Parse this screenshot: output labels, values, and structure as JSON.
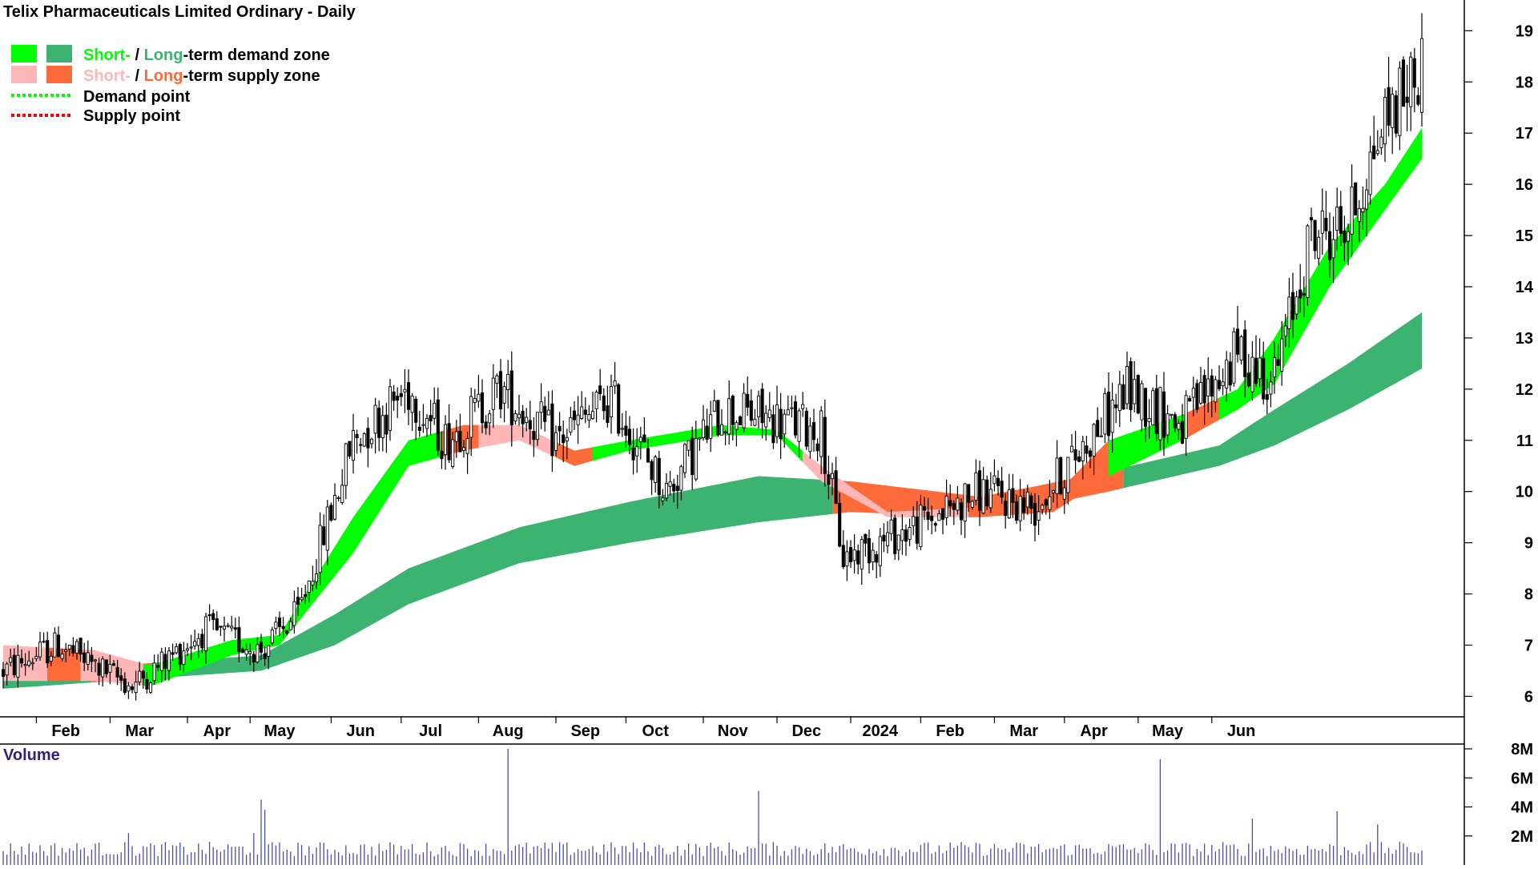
{
  "title": "Telix Pharmaceuticals Limited Ordinary - Daily",
  "legend": {
    "demand_zone": {
      "short": "Short-",
      "sep": " / ",
      "long": "Long",
      "rest": "-term demand zone"
    },
    "supply_zone": {
      "short": "Short-",
      "sep": " / ",
      "long": "Long",
      "rest": "-term supply zone"
    },
    "demand_point": "Demand point",
    "supply_point": "Supply point"
  },
  "colors": {
    "short_demand": "#00ff00",
    "long_demand": "#3cb371",
    "short_supply": "#ffb6b6",
    "long_supply": "#ff6a3a",
    "demand_point": "#00ff00",
    "supply_point": "#ff0000",
    "volume_bar": "#4b4bb4",
    "volume_title": "#3a1a7a"
  },
  "volume_label": "Volume",
  "chart_data": {
    "type": "candlestick",
    "ylim": [
      5.6,
      19.6
    ],
    "y_ticks": [
      "6",
      "7",
      "8",
      "9",
      "10",
      "11",
      "12",
      "13",
      "14",
      "15",
      "16",
      "17",
      "18",
      "19"
    ],
    "x_ticks": [
      "Feb",
      "Mar",
      "Apr",
      "May",
      "Jun",
      "Jul",
      "Aug",
      "Sep",
      "Oct",
      "Nov",
      "Dec",
      "2024",
      "Feb",
      "Mar",
      "Apr",
      "May",
      "Jun"
    ],
    "price_anchors": [
      [
        0,
        6.5
      ],
      [
        15,
        7.0
      ],
      [
        35,
        6.2
      ],
      [
        55,
        7.3
      ],
      [
        70,
        6.9
      ],
      [
        80,
        7.6
      ],
      [
        95,
        11.0
      ],
      [
        110,
        12.0
      ],
      [
        120,
        11.0
      ],
      [
        135,
        12.0
      ],
      [
        150,
        11.0
      ],
      [
        165,
        11.8
      ],
      [
        180,
        10.0
      ],
      [
        195,
        11.6
      ],
      [
        210,
        11.4
      ],
      [
        222,
        11.2
      ],
      [
        228,
        8.7
      ],
      [
        250,
        9.4
      ],
      [
        265,
        10.0
      ],
      [
        280,
        9.7
      ],
      [
        290,
        10.6
      ],
      [
        305,
        12.0
      ],
      [
        320,
        11.3
      ],
      [
        335,
        12.7
      ],
      [
        345,
        12.2
      ],
      [
        355,
        15.0
      ],
      [
        365,
        15.2
      ],
      [
        375,
        17.3
      ],
      [
        385,
        18.3
      ]
    ],
    "short_zone_upper": [
      [
        0,
        7.0
      ],
      [
        25,
        6.9
      ],
      [
        40,
        6.6
      ],
      [
        62,
        7.1
      ],
      [
        75,
        7.2
      ],
      [
        95,
        9.5
      ],
      [
        110,
        11.0
      ],
      [
        125,
        11.3
      ],
      [
        140,
        11.3
      ],
      [
        155,
        10.8
      ],
      [
        170,
        11.0
      ],
      [
        195,
        11.3
      ],
      [
        210,
        11.2
      ],
      [
        222,
        10.5
      ],
      [
        240,
        9.6
      ],
      [
        265,
        9.7
      ],
      [
        285,
        9.9
      ],
      [
        300,
        11.0
      ],
      [
        320,
        11.5
      ],
      [
        335,
        12.0
      ],
      [
        345,
        13.0
      ],
      [
        360,
        14.8
      ],
      [
        375,
        16.0
      ],
      [
        385,
        17.1
      ]
    ],
    "short_zone_lower": [
      [
        0,
        6.3
      ],
      [
        25,
        6.3
      ],
      [
        40,
        6.2
      ],
      [
        62,
        6.8
      ],
      [
        75,
        7.0
      ],
      [
        95,
        8.8
      ],
      [
        110,
        10.5
      ],
      [
        125,
        10.8
      ],
      [
        140,
        11.0
      ],
      [
        155,
        10.5
      ],
      [
        170,
        10.8
      ],
      [
        195,
        11.1
      ],
      [
        210,
        11.1
      ],
      [
        222,
        10.2
      ],
      [
        240,
        9.5
      ],
      [
        265,
        9.5
      ],
      [
        285,
        9.6
      ],
      [
        300,
        10.3
      ],
      [
        320,
        11.0
      ],
      [
        335,
        11.6
      ],
      [
        345,
        12.1
      ],
      [
        360,
        14.0
      ],
      [
        375,
        15.5
      ],
      [
        385,
        16.5
      ]
    ],
    "long_zone_upper": [
      [
        0,
        6.5
      ],
      [
        30,
        6.6
      ],
      [
        70,
        6.8
      ],
      [
        90,
        7.6
      ],
      [
        110,
        8.5
      ],
      [
        140,
        9.3
      ],
      [
        170,
        9.8
      ],
      [
        205,
        10.3
      ],
      [
        230,
        10.2
      ],
      [
        265,
        9.9
      ],
      [
        280,
        10.1
      ],
      [
        300,
        10.4
      ],
      [
        330,
        10.9
      ],
      [
        345,
        11.6
      ],
      [
        365,
        12.5
      ],
      [
        385,
        13.5
      ]
    ],
    "long_zone_lower": [
      [
        0,
        6.15
      ],
      [
        30,
        6.3
      ],
      [
        70,
        6.5
      ],
      [
        90,
        7.0
      ],
      [
        110,
        7.8
      ],
      [
        140,
        8.6
      ],
      [
        170,
        9.0
      ],
      [
        205,
        9.4
      ],
      [
        230,
        9.6
      ],
      [
        265,
        9.5
      ],
      [
        280,
        9.7
      ],
      [
        300,
        10.0
      ],
      [
        330,
        10.5
      ],
      [
        345,
        10.9
      ],
      [
        365,
        11.6
      ],
      [
        385,
        12.4
      ]
    ],
    "volume_ylim": [
      0,
      8
    ],
    "volume_ticks": [
      "2M",
      "4M",
      "6M",
      "8M"
    ],
    "volume_spikes": [
      [
        34,
        2.2
      ],
      [
        68,
        2.2
      ],
      [
        70,
        4.5
      ],
      [
        71,
        3.8
      ],
      [
        137,
        8.0
      ],
      [
        205,
        5.1
      ],
      [
        314,
        7.3
      ],
      [
        339,
        3.2
      ],
      [
        362,
        3.7
      ],
      [
        373,
        2.8
      ]
    ]
  }
}
